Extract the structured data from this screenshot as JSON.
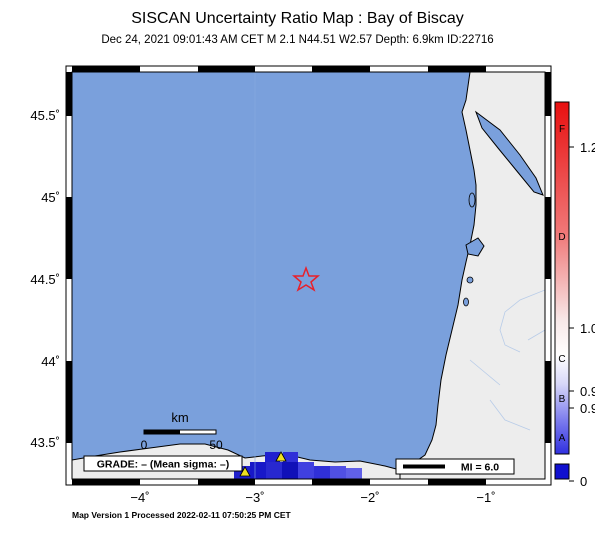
{
  "title": "SISCAN Uncertainty Ratio Map : Bay of Biscay",
  "subtitle": "Dec 24, 2021 09:01:43 AM CET   M 2.1   N44.51 W2.57   Depth: 6.9km   ID:22716",
  "y_ticks": [
    "45.5˚",
    "45˚",
    "44.5˚",
    "44˚",
    "43.5˚"
  ],
  "x_ticks": [
    "−4˚",
    "−3˚",
    "−2˚",
    "−1˚"
  ],
  "scalebar": {
    "label": "km",
    "start": "0",
    "end": "50"
  },
  "grade_box": "GRADE: – (Mean sigma: –)",
  "mi_box": "MI = 6.0",
  "colorbar": {
    "letters": [
      "F",
      "D",
      "C",
      "B",
      "A"
    ],
    "values": [
      "1.2",
      "1.0",
      "0.9",
      "0.9",
      "0"
    ]
  },
  "footer": "Map Version 1 Processed 2022-02-11 07:50:25 PM CET",
  "colors": {
    "sea": "#7aa0dc",
    "land": "#ededed",
    "epicenter": "#e8202a",
    "station": "#f0e020"
  }
}
